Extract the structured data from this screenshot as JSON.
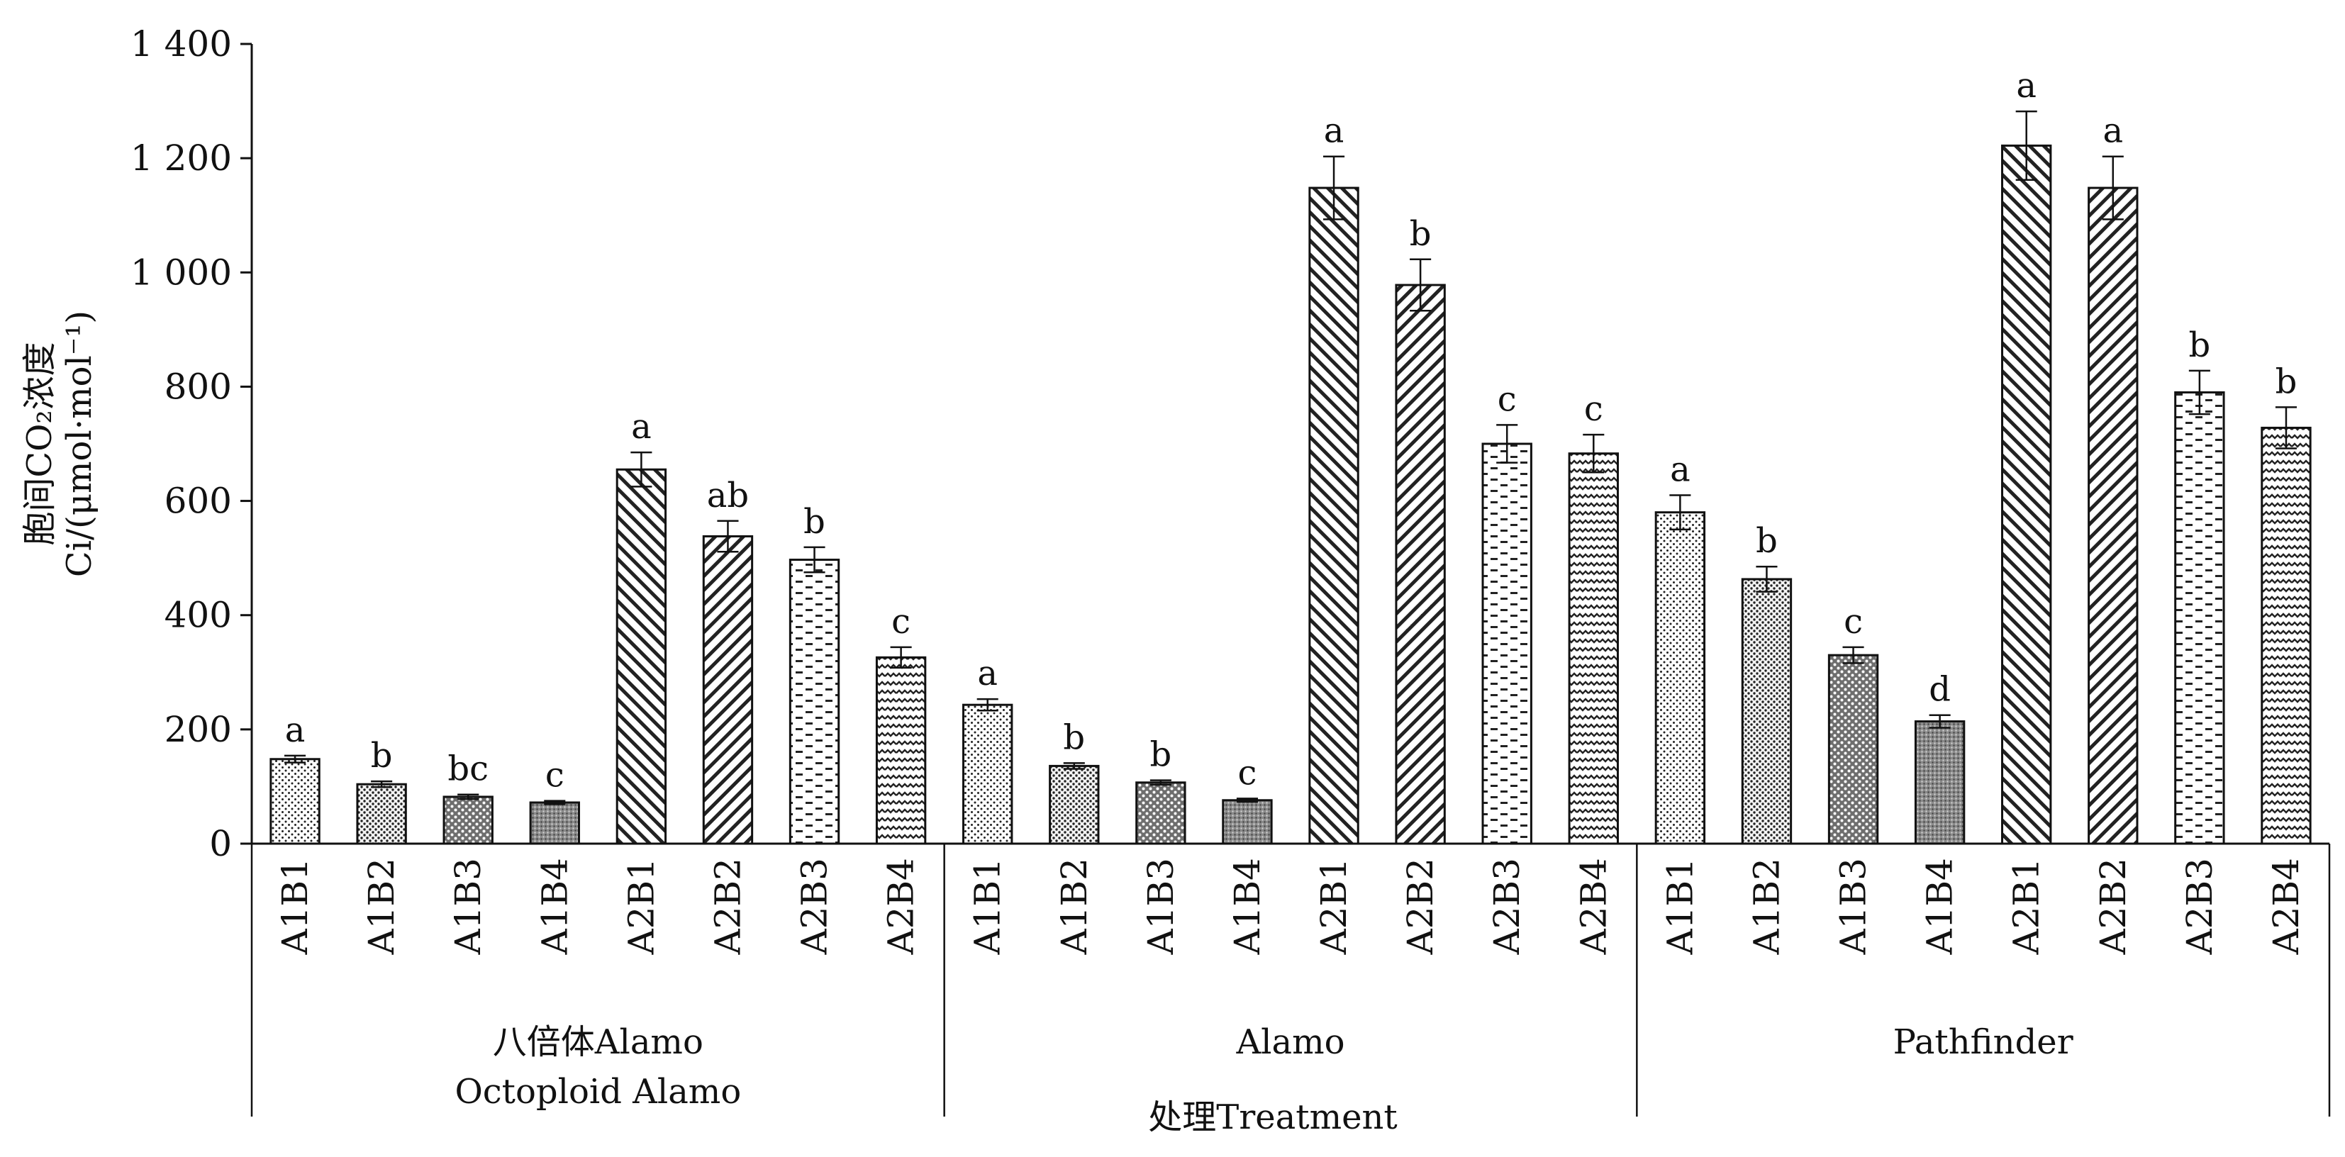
{
  "chart_data": {
    "type": "bar",
    "ylabel_cn": "胞间CO₂浓度",
    "ylabel": "Ci/(μmol·mol⁻¹)",
    "xlabel": "处理Treatment",
    "ylim": [
      0,
      1400
    ],
    "yticks": [
      0,
      200,
      400,
      600,
      800,
      1000,
      1200,
      1400
    ],
    "ytick_labels": [
      "0",
      "200",
      "400",
      "600",
      "800",
      "1 000",
      "1 200",
      "1 400"
    ],
    "grid": false,
    "groups": [
      {
        "label_lines": [
          "八倍体Alamo",
          "Octoploid Alamo"
        ],
        "bars": [
          {
            "category": "A1B1",
            "value": 148,
            "error": 6,
            "sig": "a",
            "pattern": "dots-fine"
          },
          {
            "category": "A1B2",
            "value": 104,
            "error": 5,
            "sig": "b",
            "pattern": "dots-med"
          },
          {
            "category": "A1B3",
            "value": 82,
            "error": 4,
            "sig": "bc",
            "pattern": "dots-coarse"
          },
          {
            "category": "A1B4",
            "value": 72,
            "error": 3,
            "sig": "c",
            "pattern": "dots-dense"
          },
          {
            "category": "A2B1",
            "value": 655,
            "error": 30,
            "sig": "a",
            "pattern": "diag-back"
          },
          {
            "category": "A2B2",
            "value": 538,
            "error": 27,
            "sig": "ab",
            "pattern": "diag-fwd"
          },
          {
            "category": "A2B3",
            "value": 497,
            "error": 22,
            "sig": "b",
            "pattern": "dashes"
          },
          {
            "category": "A2B4",
            "value": 326,
            "error": 18,
            "sig": "c",
            "pattern": "waves"
          }
        ]
      },
      {
        "label_lines": [
          "Alamo"
        ],
        "bars": [
          {
            "category": "A1B1",
            "value": 243,
            "error": 10,
            "sig": "a",
            "pattern": "dots-fine"
          },
          {
            "category": "A1B2",
            "value": 136,
            "error": 5,
            "sig": "b",
            "pattern": "dots-med"
          },
          {
            "category": "A1B3",
            "value": 107,
            "error": 4,
            "sig": "b",
            "pattern": "dots-coarse"
          },
          {
            "category": "A1B4",
            "value": 76,
            "error": 3,
            "sig": "c",
            "pattern": "dots-dense"
          },
          {
            "category": "A2B1",
            "value": 1148,
            "error": 55,
            "sig": "a",
            "pattern": "diag-back"
          },
          {
            "category": "A2B2",
            "value": 978,
            "error": 45,
            "sig": "b",
            "pattern": "diag-fwd"
          },
          {
            "category": "A2B3",
            "value": 700,
            "error": 33,
            "sig": "c",
            "pattern": "dashes"
          },
          {
            "category": "A2B4",
            "value": 683,
            "error": 33,
            "sig": "c",
            "pattern": "waves"
          }
        ]
      },
      {
        "label_lines": [
          "Pathfinder"
        ],
        "bars": [
          {
            "category": "A1B1",
            "value": 580,
            "error": 30,
            "sig": "a",
            "pattern": "dots-fine"
          },
          {
            "category": "A1B2",
            "value": 463,
            "error": 22,
            "sig": "b",
            "pattern": "dots-med"
          },
          {
            "category": "A1B3",
            "value": 330,
            "error": 14,
            "sig": "c",
            "pattern": "dots-coarse"
          },
          {
            "category": "A1B4",
            "value": 214,
            "error": 11,
            "sig": "d",
            "pattern": "dots-dense"
          },
          {
            "category": "A2B1",
            "value": 1222,
            "error": 60,
            "sig": "a",
            "pattern": "diag-back"
          },
          {
            "category": "A2B2",
            "value": 1148,
            "error": 55,
            "sig": "a",
            "pattern": "diag-fwd"
          },
          {
            "category": "A2B3",
            "value": 790,
            "error": 38,
            "sig": "b",
            "pattern": "dashes"
          },
          {
            "category": "A2B4",
            "value": 728,
            "error": 36,
            "sig": "b",
            "pattern": "waves"
          }
        ]
      }
    ]
  }
}
